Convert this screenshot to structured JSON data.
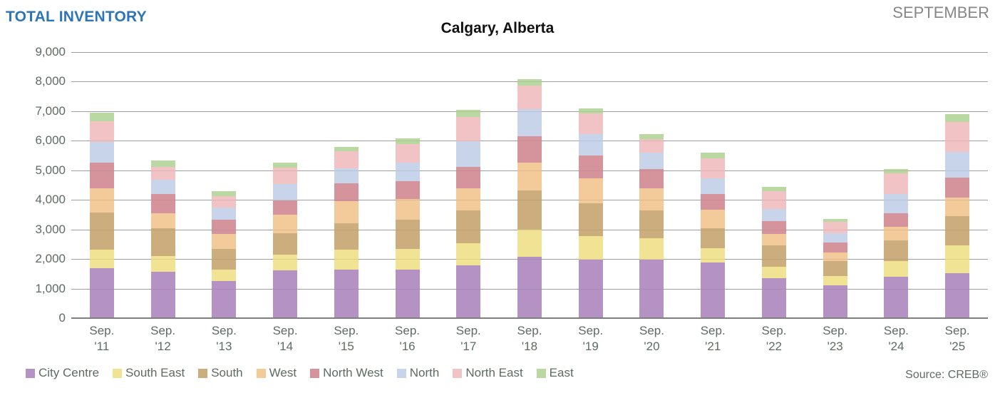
{
  "header": {
    "page_title": "TOTAL INVENTORY",
    "month_label": "SEPTEMBER",
    "chart_title": "Calgary, Alberta",
    "source": "Source: CREB®"
  },
  "colors": {
    "page_title_blue": "#2e75b6",
    "month_label_gray": "#878787",
    "axis_text": "#5d6b63",
    "gridline": "#ababab",
    "baseline": "#7f7f7f",
    "background": "#ffffff"
  },
  "chart_data": {
    "type": "bar",
    "stacked": true,
    "title": "Calgary, Alberta",
    "xlabel": "",
    "ylabel": "",
    "ylim": [
      0,
      9000
    ],
    "ytick_interval": 1000,
    "grid": true,
    "legend_position": "bottom",
    "yticks_top_to_bottom": [
      "9,000",
      "8,000",
      "7,000",
      "6,000",
      "5,000",
      "4,000",
      "3,000",
      "2,000",
      "1,000",
      "0"
    ],
    "categories": [
      {
        "top": "Sep.",
        "bottom": "'11"
      },
      {
        "top": "Sep.",
        "bottom": "'12"
      },
      {
        "top": "Sep.",
        "bottom": "'13"
      },
      {
        "top": "Sep.",
        "bottom": "'14"
      },
      {
        "top": "Sep.",
        "bottom": "'15"
      },
      {
        "top": "Sep.",
        "bottom": "'16"
      },
      {
        "top": "Sep.",
        "bottom": "'17"
      },
      {
        "top": "Sep.",
        "bottom": "'18"
      },
      {
        "top": "Sep.",
        "bottom": "'19"
      },
      {
        "top": "Sep.",
        "bottom": "'20"
      },
      {
        "top": "Sep.",
        "bottom": "'21"
      },
      {
        "top": "Sep.",
        "bottom": "'22"
      },
      {
        "top": "Sep.",
        "bottom": "'23"
      },
      {
        "top": "Sep.",
        "bottom": "'24"
      },
      {
        "top": "Sep.",
        "bottom": "'25"
      }
    ],
    "series": [
      {
        "name": "City Centre",
        "color": "#b592c4",
        "values": [
          1700,
          1560,
          1250,
          1610,
          1650,
          1650,
          1780,
          2070,
          1980,
          1990,
          1880,
          1350,
          1110,
          1410,
          1530
        ]
      },
      {
        "name": "South East",
        "color": "#f0e494",
        "values": [
          610,
          540,
          400,
          540,
          660,
          690,
          760,
          930,
          800,
          720,
          480,
          400,
          320,
          530,
          940
        ]
      },
      {
        "name": "South",
        "color": "#ccad7e",
        "values": [
          1270,
          940,
          690,
          710,
          910,
          1000,
          1110,
          1320,
          1110,
          940,
          680,
          720,
          510,
          680,
          990
        ]
      },
      {
        "name": "West",
        "color": "#f3cb9b",
        "values": [
          810,
          500,
          520,
          630,
          750,
          680,
          740,
          950,
          830,
          750,
          620,
          390,
          290,
          460,
          620
        ]
      },
      {
        "name": "North West",
        "color": "#d5949c",
        "values": [
          880,
          650,
          470,
          490,
          590,
          610,
          730,
          880,
          790,
          640,
          530,
          420,
          320,
          480,
          680
        ]
      },
      {
        "name": "North",
        "color": "#c7d4e9",
        "values": [
          700,
          490,
          410,
          550,
          520,
          640,
          870,
          930,
          710,
          550,
          530,
          420,
          330,
          630,
          860
        ]
      },
      {
        "name": "North East",
        "color": "#f2c3c5",
        "values": [
          700,
          440,
          390,
          560,
          570,
          630,
          820,
          780,
          700,
          470,
          690,
          590,
          370,
          720,
          1010
        ]
      },
      {
        "name": "East",
        "color": "#bad8a1",
        "values": [
          270,
          210,
          170,
          160,
          140,
          180,
          240,
          220,
          180,
          170,
          200,
          160,
          110,
          130,
          270
        ]
      }
    ],
    "totals": [
      6940,
      5330,
      4300,
      5250,
      5780,
      6080,
      7050,
      8080,
      7100,
      6230,
      5610,
      4450,
      3360,
      5040,
      6900
    ]
  }
}
